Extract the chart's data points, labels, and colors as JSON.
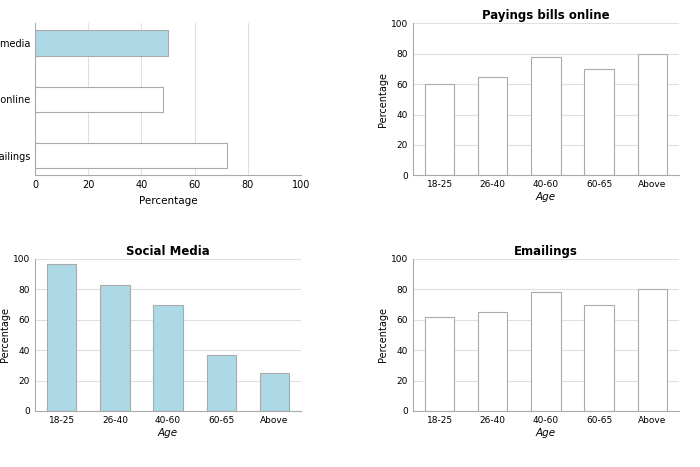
{
  "age_groups": [
    "18-25",
    "26-40",
    "40-60",
    "60-65",
    "Above"
  ],
  "social_media_by_age": [
    97,
    83,
    70,
    37,
    25
  ],
  "paying_bills_by_age": [
    60,
    65,
    78,
    70,
    80
  ],
  "emailings_by_age": [
    62,
    65,
    78,
    70,
    80
  ],
  "horizontal_categories": [
    "Emailings",
    "Paying bills online",
    "Social media"
  ],
  "horizontal_values": [
    72,
    48,
    50
  ],
  "horizontal_colors": [
    "#ffffff",
    "#ffffff",
    "#add8e6"
  ],
  "horizontal_edge_color": "#aaaaaa",
  "blue_color": "#add8e6",
  "white_color": "#ffffff",
  "bar_edge_color": "#aaaaaa",
  "title_paying": "Payings bills online",
  "title_social": "Social Media",
  "title_emailings": "Emailings",
  "ylabel": "Percentage",
  "xlabel": "Age",
  "xlabel_horizontal": "Percentage",
  "ylim": [
    0,
    100
  ],
  "xlim_horizontal": [
    0,
    100
  ],
  "yticks": [
    0,
    20,
    40,
    60,
    80,
    100
  ],
  "xticks_horizontal": [
    0,
    20,
    40,
    60,
    80,
    100
  ],
  "bg_color": "#ffffff",
  "grid_color": "#e0e0e0"
}
